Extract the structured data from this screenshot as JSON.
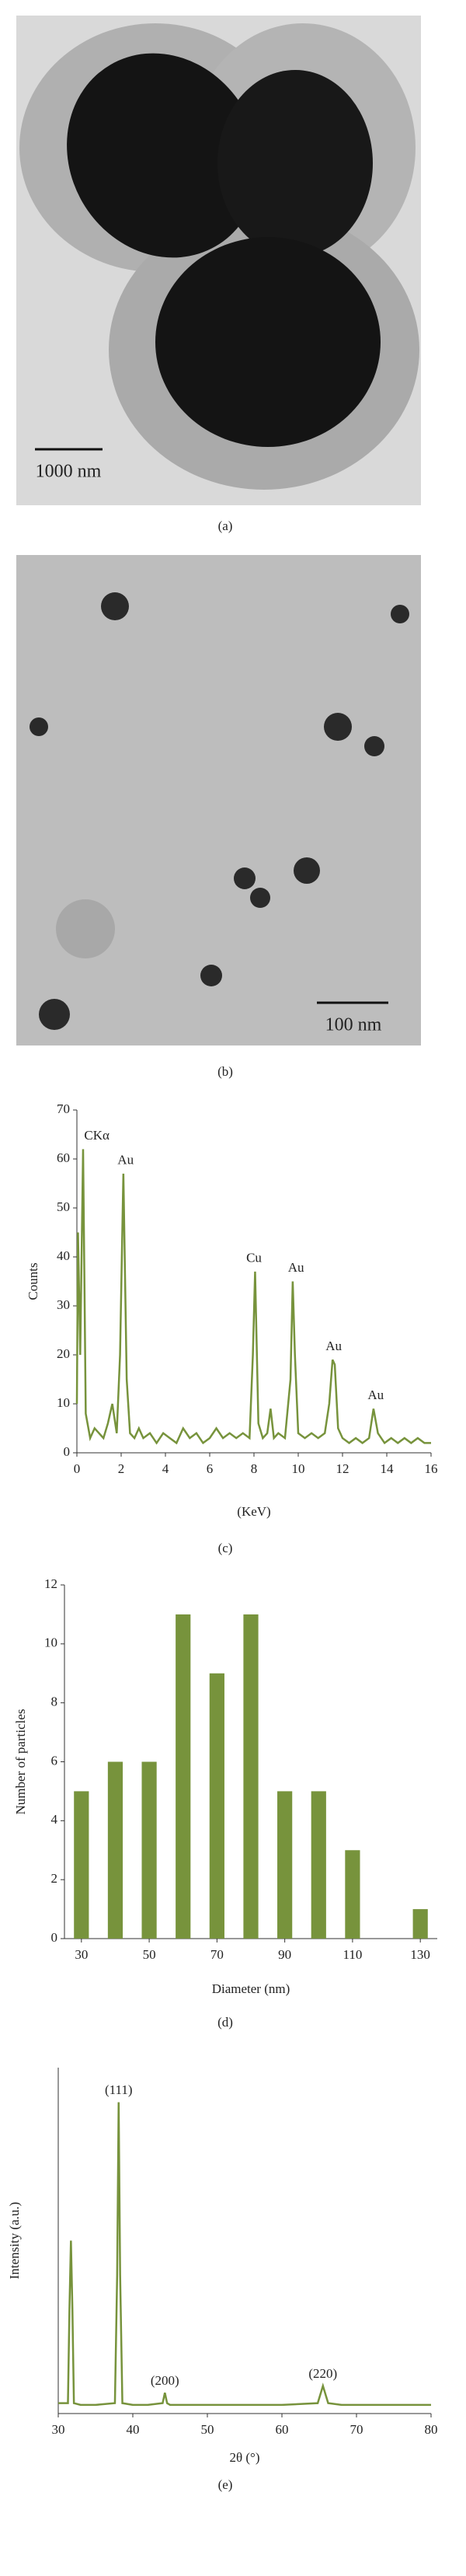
{
  "figure": {
    "panel_labels": [
      "(a)",
      "(b)",
      "(c)",
      "(d)",
      "(e)"
    ],
    "scale_bars": [
      "1000 nm",
      "100 nm"
    ]
  },
  "chart_data": [
    {
      "type": "line",
      "xlabel": "(KeV)",
      "ylabel": "Counts",
      "color": "#77933c",
      "xlim": [
        0,
        16
      ],
      "xticks": [
        0,
        2,
        4,
        6,
        8,
        10,
        12,
        14,
        16
      ],
      "ylim": [
        0,
        70
      ],
      "yticks": [
        0,
        10,
        20,
        30,
        40,
        50,
        60,
        70
      ],
      "x": [
        0,
        0.05,
        0.15,
        0.28,
        0.4,
        0.6,
        0.8,
        1.0,
        1.2,
        1.4,
        1.6,
        1.8,
        1.95,
        2.1,
        2.25,
        2.4,
        2.6,
        2.8,
        3.0,
        3.3,
        3.6,
        3.9,
        4.2,
        4.5,
        4.8,
        5.1,
        5.4,
        5.7,
        6.0,
        6.3,
        6.6,
        6.9,
        7.2,
        7.5,
        7.8,
        7.95,
        8.05,
        8.2,
        8.4,
        8.6,
        8.75,
        8.9,
        9.1,
        9.4,
        9.65,
        9.75,
        9.85,
        10.0,
        10.3,
        10.6,
        10.9,
        11.2,
        11.4,
        11.55,
        11.65,
        11.8,
        12.0,
        12.3,
        12.6,
        12.9,
        13.2,
        13.4,
        13.6,
        13.9,
        14.2,
        14.5,
        14.8,
        15.1,
        15.4,
        15.7,
        16
      ],
      "values": [
        10,
        45,
        20,
        62,
        8,
        3,
        5,
        4,
        3,
        6,
        10,
        4,
        20,
        57,
        15,
        4,
        3,
        5,
        3,
        4,
        2,
        4,
        3,
        2,
        5,
        3,
        4,
        2,
        3,
        5,
        3,
        4,
        3,
        4,
        3,
        20,
        37,
        6,
        3,
        4,
        9,
        3,
        4,
        3,
        15,
        35,
        20,
        4,
        3,
        4,
        3,
        4,
        10,
        19,
        18,
        5,
        3,
        2,
        3,
        2,
        3,
        9,
        4,
        2,
        3,
        2,
        3,
        2,
        3,
        2,
        2
      ],
      "annotations": [
        {
          "text": "CKα",
          "x": 0.9,
          "y": 63
        },
        {
          "text": "Au",
          "x": 2.2,
          "y": 58
        },
        {
          "text": "Cu",
          "x": 8.0,
          "y": 38
        },
        {
          "text": "Au",
          "x": 9.9,
          "y": 36
        },
        {
          "text": "Au",
          "x": 11.6,
          "y": 20
        },
        {
          "text": "Au",
          "x": 13.5,
          "y": 10
        }
      ]
    },
    {
      "type": "bar",
      "xlabel": "Diameter (nm)",
      "ylabel": "Number of particles",
      "color": "#77933c",
      "xlim": [
        25,
        135
      ],
      "xticks": [
        30,
        50,
        70,
        90,
        110,
        130
      ],
      "ylim": [
        0,
        12
      ],
      "yticks": [
        0,
        2,
        4,
        6,
        8,
        10,
        12
      ],
      "x": [
        30,
        40,
        50,
        60,
        70,
        80,
        90,
        100,
        110,
        130
      ],
      "values": [
        5,
        6,
        6,
        11,
        9,
        11,
        5,
        5,
        3,
        1
      ]
    },
    {
      "type": "line",
      "xlabel": "2θ (°)",
      "ylabel": "Intensity (a.u.)",
      "color": "#77933c",
      "xlim": [
        30,
        80
      ],
      "xticks": [
        30,
        40,
        50,
        60,
        70,
        80
      ],
      "ylim": [
        0,
        100
      ],
      "x": [
        30,
        31.3,
        31.5,
        31.7,
        31.9,
        32.1,
        33,
        35,
        37.6,
        37.9,
        38.1,
        38.3,
        38.6,
        40,
        42,
        44.0,
        44.3,
        44.6,
        45,
        47,
        50,
        55,
        60,
        64.8,
        65.5,
        66.2,
        68,
        72,
        76,
        80
      ],
      "values": [
        3,
        3,
        30,
        50,
        30,
        3,
        2.5,
        2.5,
        3,
        40,
        90,
        40,
        3,
        2.5,
        2.5,
        3,
        6,
        3,
        2.5,
        2.5,
        2.5,
        2.5,
        2.5,
        3,
        8,
        3,
        2.5,
        2.5,
        2.5,
        2.5
      ],
      "annotations": [
        {
          "text": "(111)",
          "x": 38.1,
          "y": 91
        },
        {
          "text": "(200)",
          "x": 44.3,
          "y": 7
        },
        {
          "text": "(220)",
          "x": 65.5,
          "y": 9
        }
      ]
    }
  ]
}
